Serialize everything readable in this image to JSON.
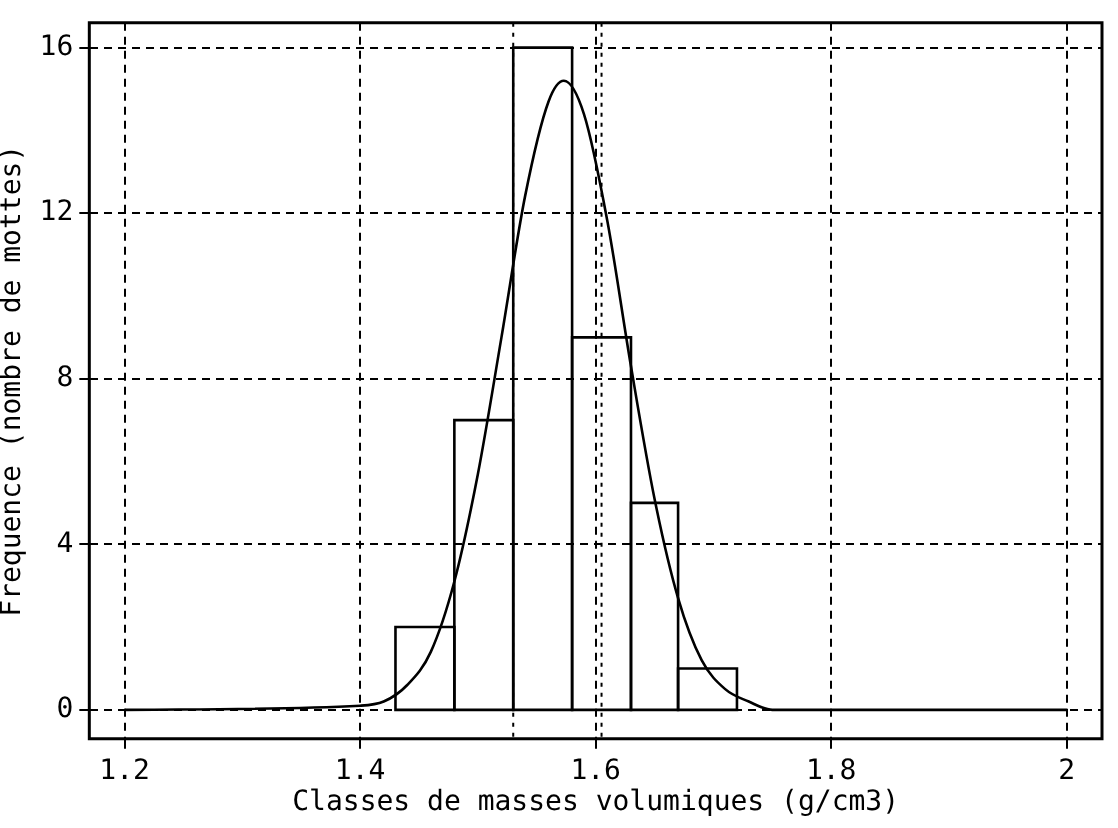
{
  "chart_data": {
    "type": "histogram",
    "xlabel": "Classes de masses volumiques (g/cm3)",
    "ylabel": "Frequence (nombre de mottes)",
    "bins": [
      1.43,
      1.48,
      1.53,
      1.58,
      1.63,
      1.67,
      1.72
    ],
    "values": [
      2,
      7,
      16,
      9,
      5,
      1
    ],
    "color": "#000000",
    "series": [
      {
        "type": "line",
        "color": "#000000",
        "x": [
          1.2,
          1.4,
          1.42,
          1.44,
          1.46,
          1.48,
          1.5,
          1.52,
          1.54,
          1.56,
          1.573,
          1.59,
          1.61,
          1.63,
          1.65,
          1.67,
          1.69,
          1.71,
          1.73,
          1.75,
          2.0
        ],
        "values": [
          0,
          0.1,
          0.2,
          0.6,
          1.4,
          3.1,
          5.7,
          9.0,
          12.4,
          14.7,
          15.2,
          14.4,
          11.8,
          8.3,
          5.1,
          2.7,
          1.2,
          0.5,
          0.2,
          0,
          0
        ]
      }
    ],
    "ref_lines": [
      {
        "axis": "x",
        "value": 1.53,
        "line_style": "dotted"
      },
      {
        "axis": "x",
        "value": 1.605,
        "line_style": "dotted"
      }
    ],
    "xlim": [
      1.17,
      2.03
    ],
    "xticks": [
      {
        "value": 1.2,
        "label": "1.2"
      },
      {
        "value": 1.4,
        "label": "1.4"
      },
      {
        "value": 1.6,
        "label": "1.6"
      },
      {
        "value": 1.8,
        "label": "1.8"
      },
      2
    ],
    "ylim": [
      -0.7,
      16.6
    ],
    "yticks": [
      0,
      4,
      8,
      12,
      16
    ],
    "grid": true,
    "marker": "none",
    "line_style": "solid",
    "legend": false
  }
}
